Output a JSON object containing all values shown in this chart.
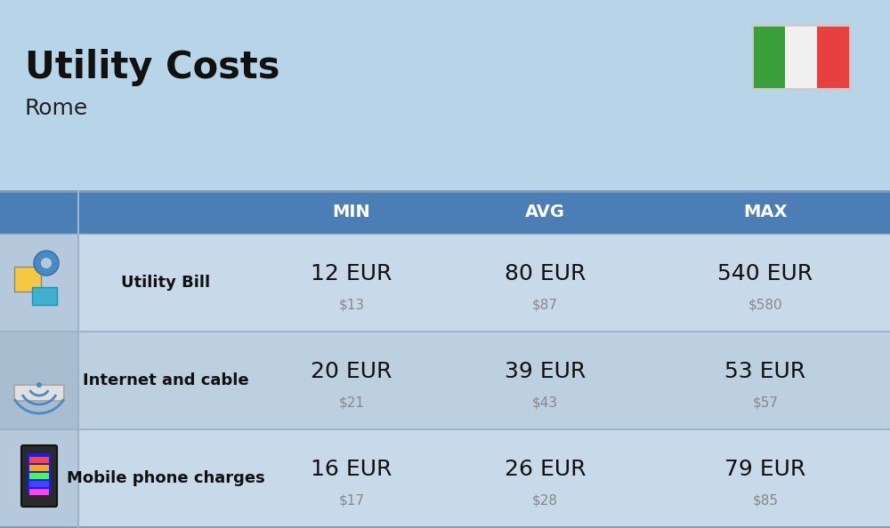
{
  "title": "Utility Costs",
  "subtitle": "Rome",
  "background_color": "#b8d4e8",
  "header_bg_color": "#4a7eb5",
  "header_text_color": "#ffffff",
  "row_bg_color_1": "#c8daea",
  "row_bg_color_2": "#bdd0e0",
  "icon_col_bg_1": "#b5c8dc",
  "icon_col_bg_2": "#a8bdd0",
  "italy_flag_colors": [
    "#3a9e3a",
    "#f0f0f0",
    "#e84040"
  ],
  "title_fontsize": 30,
  "subtitle_fontsize": 18,
  "header_fontsize": 14,
  "label_fontsize": 13,
  "value_fontsize": 18,
  "usd_fontsize": 11,
  "rows": [
    {
      "label": "Utility Bill",
      "min_eur": "12 EUR",
      "min_usd": "$13",
      "avg_eur": "80 EUR",
      "avg_usd": "$87",
      "max_eur": "540 EUR",
      "max_usd": "$580"
    },
    {
      "label": "Internet and cable",
      "min_eur": "20 EUR",
      "min_usd": "$21",
      "avg_eur": "39 EUR",
      "avg_usd": "$43",
      "max_eur": "53 EUR",
      "max_usd": "$57"
    },
    {
      "label": "Mobile phone charges",
      "min_eur": "16 EUR",
      "min_usd": "$17",
      "avg_eur": "26 EUR",
      "avg_usd": "$28",
      "max_eur": "79 EUR",
      "max_usd": "$85"
    }
  ]
}
